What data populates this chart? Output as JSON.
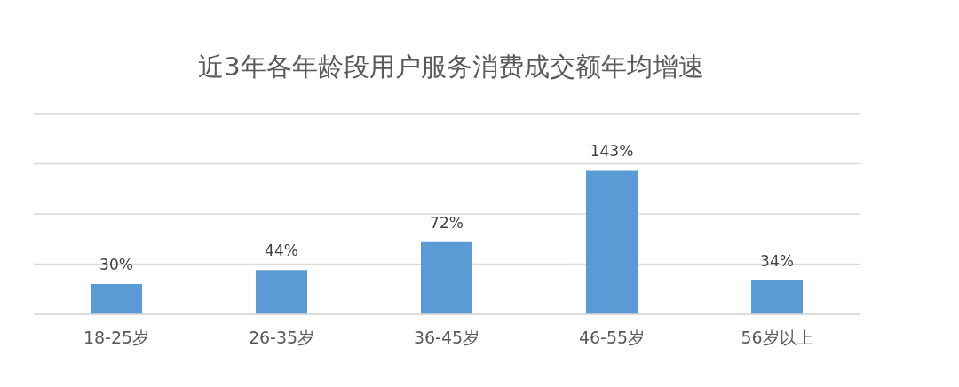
{
  "chart_data": {
    "type": "bar",
    "title": "近3年各年龄段用户服务消费成交额年均增速",
    "categories": [
      "18-25岁",
      "26-35岁",
      "36-45岁",
      "46-55岁",
      "56岁以上"
    ],
    "values": [
      30,
      44,
      72,
      143,
      34
    ],
    "value_labels": [
      "30%",
      "44%",
      "72%",
      "143%",
      "34%"
    ],
    "color": "#5b9bd5",
    "ylim": [
      0,
      200
    ],
    "yticks": [
      {
        "value": 0,
        "label": null
      },
      {
        "value": 50,
        "label": null
      },
      {
        "value": 100,
        "label": null
      },
      {
        "value": 150,
        "label": null
      },
      {
        "value": 200,
        "label": null
      }
    ],
    "grid": "y",
    "tick_labels": "x",
    "legend": false
  }
}
